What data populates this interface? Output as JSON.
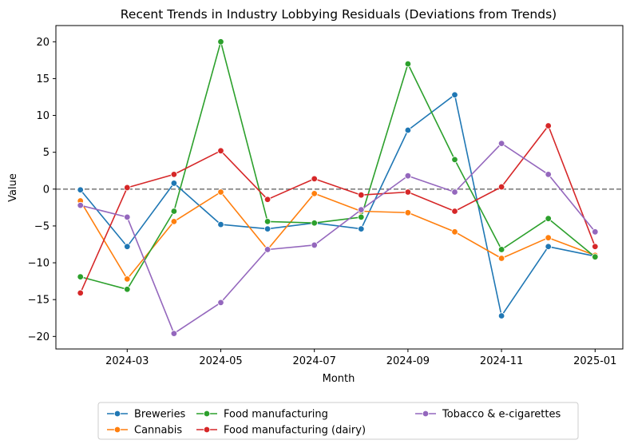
{
  "chart_data": {
    "type": "line",
    "title": "Recent Trends in Industry Lobbying Residuals (Deviations from Trends)",
    "xlabel": "Month",
    "ylabel": "Value",
    "x": [
      "2024-02",
      "2024-03",
      "2024-04",
      "2024-05",
      "2024-06",
      "2024-07",
      "2024-08",
      "2024-09",
      "2024-10",
      "2024-11",
      "2024-12",
      "2025-01"
    ],
    "x_tick_labels": [
      "2024-03",
      "2024-05",
      "2024-07",
      "2024-09",
      "2024-11",
      "2025-01"
    ],
    "y_ticks": [
      20,
      15,
      10,
      5,
      0,
      -5,
      -10,
      -15,
      -20
    ],
    "y_tick_labels": [
      "20",
      "15",
      "10",
      "5",
      "0",
      "−5",
      "−10",
      "−15",
      "−20"
    ],
    "ylim": [
      -21.7,
      22.2
    ],
    "reference_line": {
      "y": 0,
      "style": "dashed",
      "color": "#808080"
    },
    "grid": false,
    "legend_position": "bottom-center",
    "series": [
      {
        "name": "Breweries",
        "color": "#1f77b4",
        "values": [
          -0.1,
          -7.8,
          0.8,
          -4.8,
          -5.4,
          -4.6,
          -5.4,
          8.0,
          12.8,
          -17.2,
          -7.8,
          -9.1
        ]
      },
      {
        "name": "Cannabis",
        "color": "#ff7f0e",
        "values": [
          -1.6,
          -12.2,
          -4.4,
          -0.4,
          -8.2,
          -0.6,
          -3.0,
          -3.2,
          -5.8,
          -9.4,
          -6.6,
          -9.0
        ]
      },
      {
        "name": "Food manufacturing",
        "color": "#2ca02c",
        "values": [
          -11.9,
          -13.6,
          -3.0,
          20.0,
          -4.4,
          -4.6,
          -3.8,
          17.0,
          4.0,
          -8.2,
          -4.0,
          -9.2
        ]
      },
      {
        "name": "Food manufacturing (dairy)",
        "color": "#d62728",
        "values": [
          -14.1,
          0.2,
          2.0,
          5.2,
          -1.4,
          1.4,
          -0.8,
          -0.4,
          -3.0,
          0.3,
          8.6,
          -7.8
        ]
      },
      {
        "name": "Tobacco & e-cigarettes",
        "color": "#9467bd",
        "values": [
          -2.2,
          -3.8,
          -19.6,
          -15.4,
          -8.2,
          -7.6,
          -2.8,
          1.8,
          -0.4,
          6.2,
          2.0,
          -5.8
        ]
      }
    ]
  }
}
